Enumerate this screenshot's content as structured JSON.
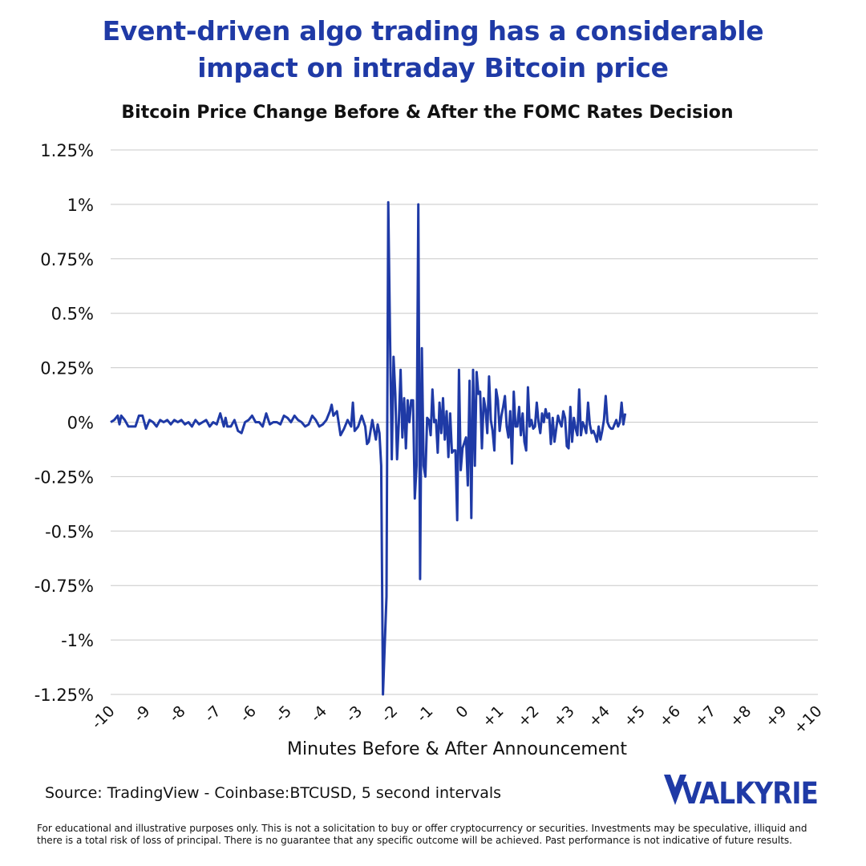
{
  "header": {
    "title_line1": "Event-driven algo trading has a considerable",
    "title_line2": "impact on intraday Bitcoin price"
  },
  "chart_data": {
    "type": "line",
    "title": "Bitcoin Price Change Before & After the FOMC Rates Decision",
    "xlabel": "Minutes Before & After Announcement",
    "ylabel": "",
    "x_ticks": [
      "-10",
      "-9",
      "-8",
      "-7",
      "-6",
      "-5",
      "-4",
      "-3",
      "-2",
      "-1",
      "0",
      "+1",
      "+2",
      "+3",
      "+4",
      "+5",
      "+6",
      "+7",
      "+8",
      "+9",
      "+10"
    ],
    "y_ticks": [
      "1.25%",
      "1%",
      "0.75%",
      "0.5%",
      "0.25%",
      "0%",
      "-0.25%",
      "-0.5%",
      "-0.75%",
      "-1%",
      "-1.25%"
    ],
    "xlim": [
      -10,
      10
    ],
    "ylim": [
      -1.25,
      1.25
    ],
    "y_unit": "%",
    "grid": true,
    "line_color": "#1f3aa6",
    "series": [
      {
        "points": [
          [
            -10.0,
            0
          ],
          [
            -9.9,
            0.01
          ],
          [
            -9.8,
            0.03
          ],
          [
            -9.75,
            -0.01
          ],
          [
            -9.7,
            0.03
          ],
          [
            -9.6,
            0.01
          ],
          [
            -9.5,
            -0.02
          ],
          [
            -9.4,
            -0.02
          ],
          [
            -9.3,
            -0.02
          ],
          [
            -9.2,
            0.03
          ],
          [
            -9.1,
            0.03
          ],
          [
            -9.0,
            -0.03
          ],
          [
            -8.9,
            0.01
          ],
          [
            -8.8,
            0.0
          ],
          [
            -8.7,
            -0.02
          ],
          [
            -8.6,
            0.01
          ],
          [
            -8.5,
            0.0
          ],
          [
            -8.4,
            0.01
          ],
          [
            -8.3,
            -0.01
          ],
          [
            -8.2,
            0.01
          ],
          [
            -8.1,
            0.0
          ],
          [
            -8.0,
            0.01
          ],
          [
            -7.9,
            -0.01
          ],
          [
            -7.8,
            0.0
          ],
          [
            -7.7,
            -0.02
          ],
          [
            -7.6,
            0.01
          ],
          [
            -7.5,
            -0.01
          ],
          [
            -7.4,
            0.0
          ],
          [
            -7.3,
            0.01
          ],
          [
            -7.2,
            -0.02
          ],
          [
            -7.1,
            0.0
          ],
          [
            -7.0,
            -0.01
          ],
          [
            -6.9,
            0.04
          ],
          [
            -6.8,
            -0.02
          ],
          [
            -6.75,
            0.02
          ],
          [
            -6.7,
            -0.02
          ],
          [
            -6.6,
            -0.02
          ],
          [
            -6.5,
            0.01
          ],
          [
            -6.4,
            -0.04
          ],
          [
            -6.3,
            -0.05
          ],
          [
            -6.2,
            0.0
          ],
          [
            -6.1,
            0.01
          ],
          [
            -6.0,
            0.03
          ],
          [
            -5.9,
            0.0
          ],
          [
            -5.8,
            0.0
          ],
          [
            -5.7,
            -0.02
          ],
          [
            -5.6,
            0.04
          ],
          [
            -5.5,
            -0.01
          ],
          [
            -5.4,
            0.0
          ],
          [
            -5.3,
            0.0
          ],
          [
            -5.2,
            -0.01
          ],
          [
            -5.1,
            0.03
          ],
          [
            -5.0,
            0.02
          ],
          [
            -4.9,
            0.0
          ],
          [
            -4.8,
            0.03
          ],
          [
            -4.7,
            0.01
          ],
          [
            -4.6,
            0.0
          ],
          [
            -4.5,
            -0.02
          ],
          [
            -4.4,
            -0.01
          ],
          [
            -4.3,
            0.03
          ],
          [
            -4.2,
            0.01
          ],
          [
            -4.1,
            -0.02
          ],
          [
            -4.0,
            -0.01
          ],
          [
            -3.9,
            0.01
          ],
          [
            -3.8,
            0.05
          ],
          [
            -3.75,
            0.08
          ],
          [
            -3.7,
            0.03
          ],
          [
            -3.6,
            0.05
          ],
          [
            -3.5,
            -0.06
          ],
          [
            -3.4,
            -0.03
          ],
          [
            -3.3,
            0.01
          ],
          [
            -3.2,
            -0.02
          ],
          [
            -3.15,
            0.09
          ],
          [
            -3.1,
            -0.04
          ],
          [
            -3.0,
            -0.02
          ],
          [
            -2.9,
            0.03
          ],
          [
            -2.8,
            -0.02
          ],
          [
            -2.75,
            -0.1
          ],
          [
            -2.7,
            -0.09
          ],
          [
            -2.6,
            0.01
          ],
          [
            -2.5,
            -0.08
          ],
          [
            -2.45,
            -0.01
          ],
          [
            -2.4,
            -0.05
          ],
          [
            -2.35,
            -0.2
          ],
          [
            -2.3,
            -1.25
          ],
          [
            -2.2,
            -0.8
          ],
          [
            -2.15,
            1.01
          ],
          [
            -2.1,
            0.4
          ],
          [
            -2.05,
            -0.17
          ],
          [
            -2.0,
            0.3
          ],
          [
            -1.95,
            0.13
          ],
          [
            -1.9,
            -0.17
          ],
          [
            -1.85,
            0.0
          ],
          [
            -1.8,
            0.24
          ],
          [
            -1.75,
            -0.07
          ],
          [
            -1.7,
            0.11
          ],
          [
            -1.65,
            -0.12
          ],
          [
            -1.6,
            0.1
          ],
          [
            -1.55,
            0.0
          ],
          [
            -1.5,
            0.1
          ],
          [
            -1.45,
            0.1
          ],
          [
            -1.4,
            -0.35
          ],
          [
            -1.35,
            -0.2
          ],
          [
            -1.3,
            1.0
          ],
          [
            -1.25,
            -0.72
          ],
          [
            -1.2,
            0.34
          ],
          [
            -1.15,
            -0.2
          ],
          [
            -1.1,
            -0.25
          ],
          [
            -1.05,
            0.02
          ],
          [
            -1.0,
            0.01
          ],
          [
            -0.95,
            -0.06
          ],
          [
            -0.9,
            0.15
          ],
          [
            -0.85,
            0.0
          ],
          [
            -0.8,
            0.01
          ],
          [
            -0.75,
            -0.14
          ],
          [
            -0.7,
            0.09
          ],
          [
            -0.65,
            -0.05
          ],
          [
            -0.6,
            0.11
          ],
          [
            -0.55,
            -0.08
          ],
          [
            -0.5,
            0.05
          ],
          [
            -0.45,
            -0.16
          ],
          [
            -0.4,
            0.04
          ],
          [
            -0.35,
            -0.14
          ],
          [
            -0.3,
            -0.13
          ],
          [
            -0.25,
            -0.13
          ],
          [
            -0.2,
            -0.45
          ],
          [
            -0.15,
            0.24
          ],
          [
            -0.1,
            -0.22
          ],
          [
            -0.05,
            -0.12
          ],
          [
            0.05,
            -0.07
          ],
          [
            0.1,
            -0.29
          ],
          [
            0.15,
            0.19
          ],
          [
            0.2,
            -0.44
          ],
          [
            0.25,
            0.24
          ],
          [
            0.3,
            -0.2
          ],
          [
            0.35,
            0.23
          ],
          [
            0.4,
            0.13
          ],
          [
            0.45,
            0.14
          ],
          [
            0.5,
            -0.12
          ],
          [
            0.55,
            0.11
          ],
          [
            0.6,
            0.06
          ],
          [
            0.65,
            -0.05
          ],
          [
            0.7,
            0.21
          ],
          [
            0.75,
            0.01
          ],
          [
            0.8,
            -0.04
          ],
          [
            0.85,
            -0.13
          ],
          [
            0.9,
            0.15
          ],
          [
            0.95,
            0.1
          ],
          [
            1.0,
            -0.04
          ],
          [
            1.05,
            0.03
          ],
          [
            1.1,
            0.07
          ],
          [
            1.15,
            0.12
          ],
          [
            1.2,
            -0.02
          ],
          [
            1.25,
            -0.07
          ],
          [
            1.3,
            0.05
          ],
          [
            1.35,
            -0.19
          ],
          [
            1.4,
            0.14
          ],
          [
            1.45,
            -0.02
          ],
          [
            1.5,
            -0.02
          ],
          [
            1.55,
            0.07
          ],
          [
            1.6,
            -0.06
          ],
          [
            1.65,
            0.04
          ],
          [
            1.7,
            -0.09
          ],
          [
            1.75,
            -0.13
          ],
          [
            1.8,
            0.16
          ],
          [
            1.85,
            -0.02
          ],
          [
            1.9,
            0.01
          ],
          [
            1.95,
            -0.03
          ],
          [
            2.0,
            -0.02
          ],
          [
            2.05,
            0.09
          ],
          [
            2.1,
            0.0
          ],
          [
            2.15,
            -0.05
          ],
          [
            2.2,
            0.04
          ],
          [
            2.25,
            0.0
          ],
          [
            2.3,
            0.06
          ],
          [
            2.35,
            0.02
          ],
          [
            2.4,
            0.04
          ],
          [
            2.45,
            -0.1
          ],
          [
            2.5,
            0.02
          ],
          [
            2.55,
            -0.09
          ],
          [
            2.6,
            -0.03
          ],
          [
            2.65,
            0.03
          ],
          [
            2.7,
            0.0
          ],
          [
            2.75,
            -0.02
          ],
          [
            2.8,
            0.05
          ],
          [
            2.85,
            0.02
          ],
          [
            2.9,
            -0.11
          ],
          [
            2.95,
            -0.12
          ],
          [
            3.0,
            0.07
          ],
          [
            3.05,
            -0.09
          ],
          [
            3.1,
            0.02
          ],
          [
            3.15,
            -0.03
          ],
          [
            3.2,
            -0.06
          ],
          [
            3.25,
            0.15
          ],
          [
            3.3,
            -0.06
          ],
          [
            3.35,
            0.0
          ],
          [
            3.4,
            -0.02
          ],
          [
            3.45,
            -0.05
          ],
          [
            3.5,
            0.09
          ],
          [
            3.55,
            -0.01
          ],
          [
            3.6,
            -0.05
          ],
          [
            3.65,
            -0.04
          ],
          [
            3.7,
            -0.06
          ],
          [
            3.75,
            -0.09
          ],
          [
            3.8,
            -0.02
          ],
          [
            3.85,
            -0.08
          ],
          [
            3.9,
            -0.04
          ],
          [
            3.95,
            0.01
          ],
          [
            4.0,
            0.12
          ],
          [
            4.05,
            0.0
          ],
          [
            4.1,
            -0.02
          ],
          [
            4.15,
            -0.03
          ],
          [
            4.2,
            -0.03
          ],
          [
            4.3,
            0.01
          ],
          [
            4.35,
            -0.02
          ],
          [
            4.4,
            0.0
          ],
          [
            4.45,
            0.09
          ],
          [
            4.5,
            -0.01
          ],
          [
            4.55,
            0.04
          ]
        ]
      }
    ]
  },
  "footer": {
    "source": "Source: TradingView - Coinbase:BTCUSD, 5 second intervals",
    "brand": "VALKYRIE",
    "disclaimer_line1": "For educational and illustrative purposes only. This is not a solicitation to buy or offer cryptocurrency or securities. Investments may be speculative, illiquid and",
    "disclaimer_line2": "there is a total risk of loss of principal. There is no guarantee that any specific outcome will be achieved. Past performance is not indicative of future results."
  }
}
